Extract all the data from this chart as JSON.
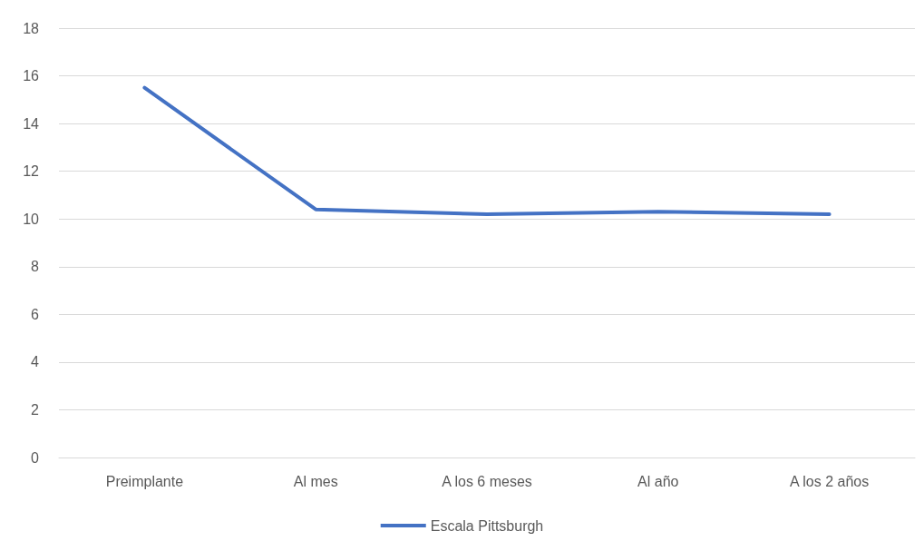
{
  "chart_data": {
    "type": "line",
    "categories": [
      "Preimplante",
      "Al mes",
      "A los 6 meses",
      "Al año",
      "A los 2 años"
    ],
    "series": [
      {
        "name": "Escala Pittsburgh",
        "color": "#4472c4",
        "values": [
          15.5,
          10.4,
          10.2,
          10.3,
          10.2
        ]
      }
    ],
    "ylim": [
      0,
      18
    ],
    "yticks": [
      0,
      2,
      4,
      6,
      8,
      10,
      12,
      14,
      16,
      18
    ],
    "grid": "y",
    "legend": "bottom",
    "marker": "none",
    "line_style": "solid"
  }
}
